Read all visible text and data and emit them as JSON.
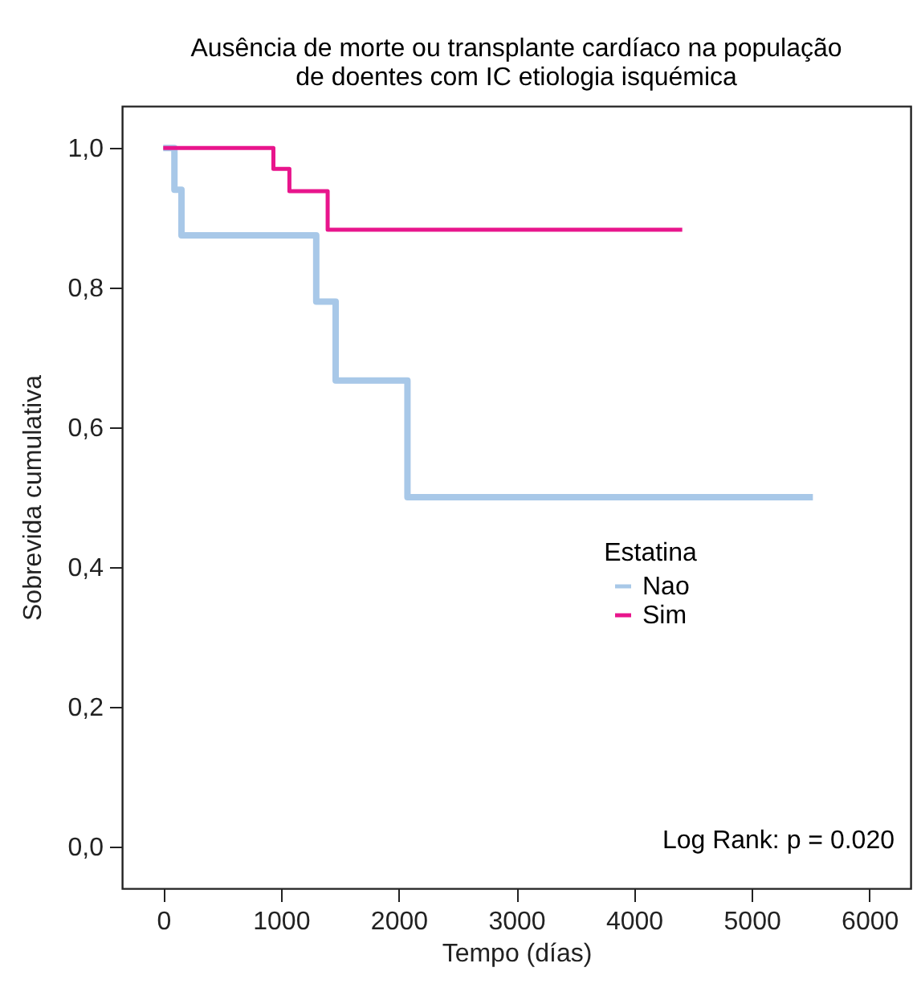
{
  "chart_data": {
    "type": "step",
    "title": "Ausência de morte ou transplante cardíaco na população\nde doentes com IC etiologia isquémica",
    "xlabel": "Tempo (días)",
    "ylabel": "Sobrevida cumulativa",
    "legend_title": "Estatina",
    "xlim": [
      -350,
      6350
    ],
    "xticks": [
      0,
      1000,
      2000,
      3000,
      4000,
      5000,
      6000
    ],
    "ylim": [
      -0.06,
      1.06
    ],
    "yticks": [
      {
        "value": 0,
        "label": "0,0"
      },
      {
        "value": 0.2,
        "label": "0,2"
      },
      {
        "value": 0.4,
        "label": "0,4"
      },
      {
        "value": 0.6,
        "label": "0,6"
      },
      {
        "value": 0.8,
        "label": "0,8"
      },
      {
        "value": 1,
        "label": "1,0"
      }
    ],
    "series": [
      {
        "name": "Nao",
        "color": "#a8c8e8",
        "x": [
          0,
          95,
          155,
          1300,
          1465,
          2075,
          5520
        ],
        "values": [
          1,
          0.94,
          0.875,
          0.78,
          0.667,
          0.5,
          0.5
        ]
      },
      {
        "name": "Sim",
        "color": "#e8158c",
        "x": [
          0,
          936,
          1072,
          1397,
          4410
        ],
        "values": [
          1,
          0.97,
          0.938,
          0.883,
          0.883
        ]
      }
    ],
    "legend": "right",
    "grid": false,
    "line_style": "solid",
    "annotations": [
      "Log Rank: p = 0.020"
    ]
  }
}
